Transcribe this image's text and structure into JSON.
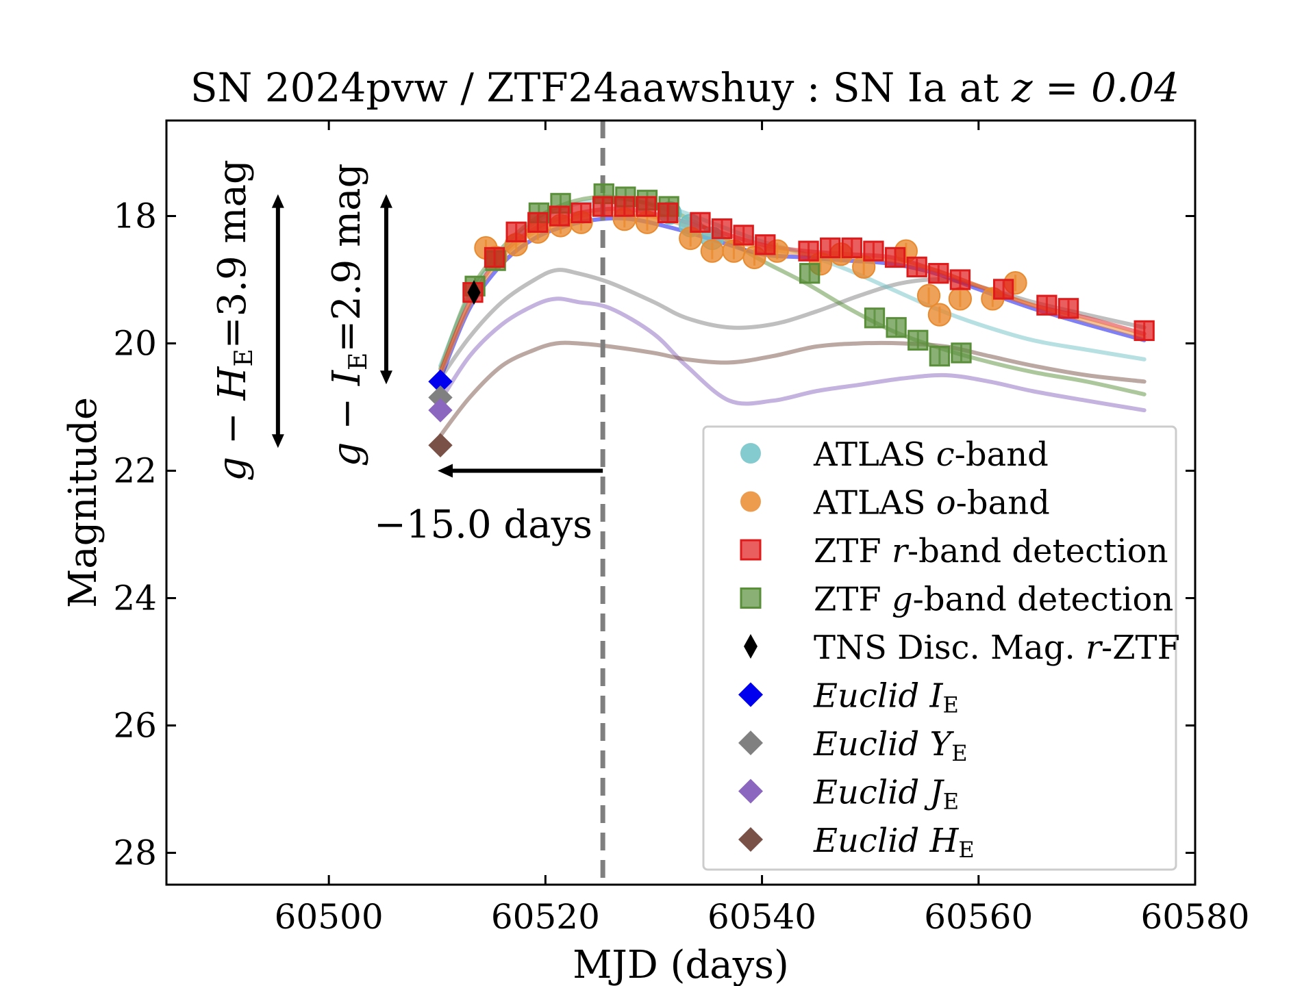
{
  "chart_data": {
    "type": "scatter",
    "title": "SN 2024pvw / ZTF24aawshuy : SN Ia at ",
    "title_math": "z = 0.04",
    "xlabel": "MJD (days)",
    "ylabel": "Magnitude",
    "xlim": [
      60485,
      60580
    ],
    "ylim": [
      28.5,
      16.5
    ],
    "y_inverted": true,
    "xticks": [
      60500,
      60520,
      60540,
      60560,
      60580
    ],
    "yticks": [
      18,
      20,
      22,
      24,
      26,
      28
    ],
    "grid": false,
    "legend_position": "lower-right",
    "colors": {
      "atlas_c": "#6fc2c7",
      "atlas_o": "#ea8a2e",
      "ztf_r": "#e01a1a",
      "ztf_g": "#5a8f3a",
      "tns": "#000000",
      "euclid_I": "#0000ee",
      "euclid_Y": "#808080",
      "euclid_J": "#8c67bf",
      "euclid_H": "#7a5146"
    },
    "reference_line": {
      "x": 60525.3,
      "style": "dashed",
      "color": "#7f7f7f"
    },
    "annotations": {
      "days_arrow": {
        "from_x": 60525.3,
        "to_x": 60510.3,
        "y": 22.0,
        "label_prefix": "−",
        "label": "15.0 days"
      },
      "color_g_I": {
        "x": 60505.3,
        "y_top": 17.7,
        "y_bottom": 20.6,
        "label_prefix": "g − I",
        "label_sub": "E",
        "label_suffix": "=2.9 mag"
      },
      "color_g_H": {
        "x": 60495.3,
        "y_top": 17.7,
        "y_bottom": 21.6,
        "label_prefix": "g − H",
        "label_sub": "E",
        "label_suffix": "=3.9 mag"
      }
    },
    "series": [
      {
        "name": "ATLAS c-band",
        "legend_main": "ATLAS ",
        "legend_italic": "c",
        "legend_rest": "-band",
        "marker": "circle",
        "color_key": "atlas_c",
        "x": [
          60531.5,
          60533.4,
          60535.4
        ],
        "y": [
          17.95,
          18.15,
          18.35
        ]
      },
      {
        "name": "ATLAS o-band",
        "legend_main": "ATLAS ",
        "legend_italic": "o",
        "legend_rest": "-band",
        "marker": "circle",
        "color_key": "atlas_o",
        "x": [
          60514.5,
          60515.4,
          60517.3,
          60519.3,
          60521.4,
          60523.3,
          60527.3,
          60529.4,
          60533.4,
          60535.4,
          60537.4,
          60539.3,
          60541.4,
          60545.4,
          60547.3,
          60549.4,
          60553.3,
          60555.4,
          60556.4,
          60558.3,
          60561.3,
          60563.4
        ],
        "y": [
          18.5,
          18.65,
          18.45,
          18.25,
          18.15,
          18.1,
          18.05,
          18.1,
          18.35,
          18.55,
          18.55,
          18.65,
          18.55,
          18.75,
          18.6,
          18.8,
          18.55,
          19.25,
          19.55,
          19.3,
          19.3,
          19.05
        ]
      },
      {
        "name": "ZTF r-band detection",
        "legend_main": "ZTF ",
        "legend_italic": "r",
        "legend_rest": "-band detection",
        "marker": "square",
        "color_key": "ztf_r",
        "x": [
          60513.3,
          60515.3,
          60517.3,
          60519.3,
          60521.3,
          60523.3,
          60525.3,
          60527.3,
          60529.3,
          60531.3,
          60534.3,
          60536.3,
          60538.3,
          60540.3,
          60544.3,
          60546.3,
          60548.3,
          60550.3,
          60552.3,
          60554.3,
          60556.3,
          60558.3,
          60562.3,
          60566.3,
          60568.3,
          60575.3
        ],
        "y": [
          19.2,
          18.65,
          18.25,
          18.1,
          18.0,
          17.95,
          17.85,
          17.85,
          17.85,
          17.95,
          18.1,
          18.2,
          18.3,
          18.45,
          18.55,
          18.5,
          18.5,
          18.55,
          18.65,
          18.8,
          18.9,
          19.0,
          19.15,
          19.4,
          19.45,
          19.8
        ]
      },
      {
        "name": "ZTF g-band detection",
        "legend_main": "ZTF ",
        "legend_italic": "g",
        "legend_rest": "-band detection",
        "marker": "square",
        "color_key": "ztf_g",
        "x": [
          60513.5,
          60515.4,
          60519.4,
          60521.4,
          60525.4,
          60527.4,
          60529.4,
          60531.4,
          60544.4,
          60550.4,
          60552.4,
          60554.4,
          60556.4,
          60558.4
        ],
        "y": [
          19.1,
          18.7,
          17.95,
          17.8,
          17.65,
          17.7,
          17.75,
          17.85,
          18.9,
          19.6,
          19.75,
          19.95,
          20.2,
          20.15
        ]
      },
      {
        "name": "TNS Disc. Mag. r-ZTF",
        "legend_main": "TNS Disc. Mag. ",
        "legend_italic": "r",
        "legend_rest": "-ZTF",
        "marker": "diamond",
        "color_key": "tns",
        "x": [
          60513.4
        ],
        "y": [
          19.2
        ]
      },
      {
        "name": "Euclid IE",
        "legend_italic_word": "Euclid",
        "legend_letter": "I",
        "legend_sub": "E",
        "marker": "diamond",
        "color_key": "euclid_I",
        "x": [
          60510.3
        ],
        "y": [
          20.6
        ]
      },
      {
        "name": "Euclid YE",
        "legend_italic_word": "Euclid",
        "legend_letter": "Y",
        "legend_sub": "E",
        "marker": "diamond",
        "color_key": "euclid_Y",
        "x": [
          60510.3
        ],
        "y": [
          20.85
        ]
      },
      {
        "name": "Euclid JE",
        "legend_italic_word": "Euclid",
        "legend_letter": "J",
        "legend_sub": "E",
        "marker": "diamond",
        "color_key": "euclid_J",
        "x": [
          60510.3
        ],
        "y": [
          21.05
        ]
      },
      {
        "name": "Euclid HE",
        "legend_italic_word": "Euclid",
        "legend_letter": "H",
        "legend_sub": "E",
        "marker": "diamond",
        "color_key": "euclid_H",
        "x": [
          60510.3
        ],
        "y": [
          21.6
        ]
      }
    ],
    "model_curves": [
      {
        "color_key": "euclid_Y",
        "x": [
          60510.3,
          60513,
          60516,
          60519,
          60521,
          60523,
          60526,
          60530,
          60533,
          60537,
          60541,
          60545,
          60549,
          60553,
          60557,
          60561,
          60565,
          60570,
          60575.3
        ],
        "y": [
          20.55,
          19.9,
          19.35,
          19.0,
          18.85,
          18.9,
          19.05,
          19.35,
          19.6,
          19.75,
          19.7,
          19.5,
          19.25,
          19.05,
          19.0,
          19.15,
          19.35,
          19.55,
          19.75
        ]
      },
      {
        "color_key": "euclid_J",
        "x": [
          60510.3,
          60513,
          60516,
          60519,
          60521,
          60523,
          60526,
          60530,
          60533,
          60537,
          60541,
          60545,
          60549,
          60553,
          60557,
          60561,
          60565,
          60570,
          60575.3
        ],
        "y": [
          20.9,
          20.2,
          19.7,
          19.4,
          19.3,
          19.35,
          19.45,
          19.85,
          20.35,
          20.9,
          20.9,
          20.75,
          20.65,
          20.55,
          20.5,
          20.6,
          20.75,
          20.9,
          21.05
        ]
      },
      {
        "color_key": "euclid_H",
        "x": [
          60510.3,
          60513,
          60516,
          60519,
          60521,
          60523,
          60526,
          60530,
          60533,
          60537,
          60541,
          60545,
          60549,
          60553,
          60557,
          60561,
          60565,
          60570,
          60575.3
        ],
        "y": [
          21.45,
          20.85,
          20.35,
          20.1,
          20.0,
          20.0,
          20.05,
          20.15,
          20.25,
          20.3,
          20.2,
          20.05,
          20.0,
          20.0,
          20.05,
          20.2,
          20.35,
          20.5,
          20.6
        ]
      },
      {
        "color_key": "atlas_c",
        "x": [
          60510.3,
          60513,
          60516,
          60519,
          60522,
          60525,
          60528,
          60532,
          60536,
          60540,
          60544,
          60548,
          60552,
          60556,
          60560,
          60565,
          60570,
          60575.3
        ],
        "y": [
          20.35,
          19.25,
          18.55,
          18.1,
          17.85,
          17.75,
          17.75,
          17.9,
          18.15,
          18.4,
          18.6,
          18.85,
          19.15,
          19.45,
          19.7,
          19.95,
          20.1,
          20.25
        ]
      },
      {
        "color_key": "ztf_g",
        "x": [
          60510.3,
          60513,
          60516,
          60519,
          60522,
          60525,
          60528,
          60532,
          60536,
          60540,
          60544,
          60548,
          60552,
          60556,
          60560,
          60565,
          60570,
          60575.3
        ],
        "y": [
          20.4,
          19.2,
          18.5,
          18.05,
          17.8,
          17.7,
          17.75,
          17.95,
          18.3,
          18.7,
          19.05,
          19.45,
          19.8,
          20.05,
          20.25,
          20.45,
          20.6,
          20.8
        ]
      },
      {
        "color_key": "euclid_I",
        "x": [
          60510.3,
          60513,
          60516,
          60519,
          60522,
          60525,
          60528,
          60532,
          60536,
          60540,
          60544,
          60548,
          60552,
          60556,
          60560,
          60565,
          60570,
          60575.3
        ],
        "y": [
          20.55,
          19.45,
          18.75,
          18.35,
          18.15,
          18.05,
          18.05,
          18.2,
          18.4,
          18.6,
          18.65,
          18.7,
          18.75,
          18.9,
          19.15,
          19.45,
          19.7,
          19.95
        ]
      },
      {
        "color_key": "ztf_r",
        "x": [
          60510.3,
          60513,
          60516,
          60519,
          60522,
          60525,
          60528,
          60532,
          60536,
          60540,
          60544,
          60548,
          60552,
          60556,
          60560,
          60565,
          60570,
          60575.3
        ],
        "y": [
          20.45,
          19.35,
          18.6,
          18.2,
          18.0,
          17.9,
          17.9,
          18.05,
          18.25,
          18.45,
          18.55,
          18.6,
          18.65,
          18.85,
          19.1,
          19.4,
          19.6,
          19.85
        ]
      },
      {
        "color_key": "atlas_o",
        "x": [
          60510.3,
          60513,
          60516,
          60519,
          60522,
          60525,
          60528,
          60532,
          60536,
          60540,
          60544,
          60548,
          60552,
          60556,
          60560,
          60565,
          60570,
          60575.3
        ],
        "y": [
          20.5,
          19.4,
          18.65,
          18.25,
          18.05,
          17.95,
          17.95,
          18.1,
          18.35,
          18.5,
          18.6,
          18.65,
          18.7,
          18.85,
          19.1,
          19.4,
          19.65,
          19.9
        ]
      }
    ]
  }
}
